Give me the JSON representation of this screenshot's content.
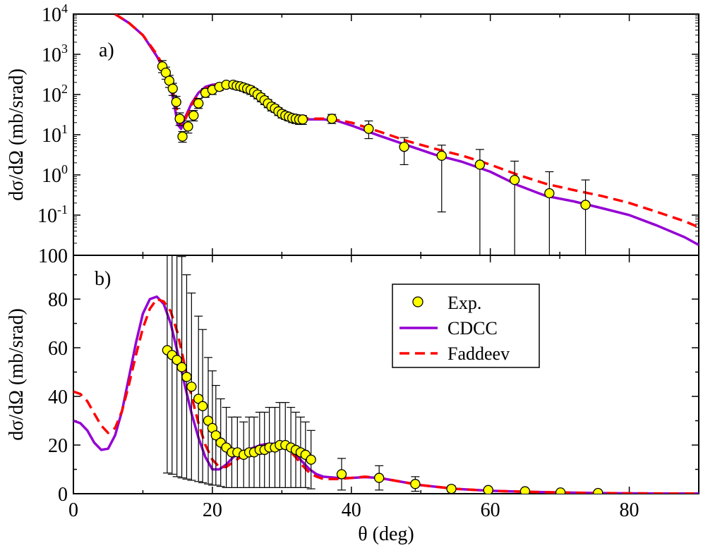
{
  "chart_data": [
    {
      "type": "line",
      "panel_label": "a)",
      "xlabel": "",
      "ylabel": "dσ/dΩ (mb/srad)",
      "xlim": [
        0,
        90
      ],
      "ylim": [
        0.01,
        10000
      ],
      "yscale": "log",
      "x_ticks": [
        0,
        20,
        40,
        60,
        80
      ],
      "y_ticks": [
        {
          "value": 10000,
          "base": "10",
          "exp": "4"
        },
        {
          "value": 1000,
          "base": "10",
          "exp": "3"
        },
        {
          "value": 100,
          "base": "10",
          "exp": "2"
        },
        {
          "value": 10,
          "base": "10",
          "exp": "1"
        },
        {
          "value": 1,
          "base": "10",
          "exp": "0"
        },
        {
          "value": 0.1,
          "base": "10",
          "exp": "-1"
        },
        {
          "value": 0.01,
          "base": "100",
          "exp": ""
        }
      ],
      "series": [
        {
          "name": "CDCC",
          "style": "solid",
          "color": "#9400d3",
          "x": [
            6,
            8,
            10,
            12,
            13,
            14,
            14.5,
            15,
            15.5,
            16,
            17,
            18,
            19,
            20,
            21,
            22,
            24,
            26,
            28,
            30,
            32,
            34,
            36,
            38,
            40,
            44,
            48,
            52,
            56,
            60,
            64,
            68,
            72,
            76,
            80,
            84,
            88,
            90
          ],
          "y": [
            10000,
            6000,
            3000,
            900,
            420,
            150,
            60,
            18,
            14,
            25,
            60,
            110,
            155,
            175,
            180,
            175,
            140,
            95,
            55,
            30,
            23,
            24,
            24,
            22,
            17,
            9.5,
            5.5,
            3.2,
            2.1,
            1.2,
            0.55,
            0.3,
            0.22,
            0.15,
            0.1,
            0.055,
            0.028,
            0.018
          ]
        },
        {
          "name": "Faddeev",
          "style": "dashed",
          "color": "#ff0000",
          "x": [
            6,
            8,
            10,
            12,
            13,
            14,
            14.5,
            15,
            15.5,
            16,
            17,
            18,
            19,
            20,
            21,
            22,
            24,
            26,
            28,
            30,
            32,
            34,
            36,
            38,
            40,
            44,
            48,
            52,
            56,
            60,
            64,
            68,
            72,
            76,
            80,
            84,
            88,
            90
          ],
          "y": [
            10000,
            6000,
            3000,
            1000,
            480,
            200,
            90,
            35,
            18,
            22,
            55,
            100,
            140,
            165,
            175,
            170,
            150,
            110,
            70,
            38,
            27,
            25,
            25,
            23,
            20,
            12,
            7,
            4.5,
            3,
            1.8,
            1.0,
            0.6,
            0.42,
            0.3,
            0.2,
            0.12,
            0.07,
            0.05
          ]
        }
      ],
      "points": {
        "name": "Exp.",
        "color": "#ffff00",
        "x": [
          12.8,
          13.3,
          13.8,
          14.3,
          14.8,
          15.3,
          15.7,
          16.5,
          17.3,
          18.0,
          19.0,
          20.0,
          21.0,
          22.0,
          23.0,
          23.5,
          24.0,
          24.5,
          25.0,
          25.5,
          26.0,
          26.5,
          27.0,
          27.5,
          28.0,
          28.5,
          29.0,
          29.5,
          30.0,
          30.5,
          31.0,
          31.5,
          32.0,
          32.5,
          33.0,
          37.2,
          42.5,
          47.6,
          53.0,
          58.5,
          63.5,
          68.5,
          73.7
        ],
        "y": [
          500,
          350,
          220,
          140,
          65,
          25,
          9,
          16,
          30,
          60,
          110,
          130,
          155,
          175,
          175,
          165,
          160,
          150,
          140,
          130,
          115,
          100,
          85,
          72,
          60,
          50,
          45,
          38,
          33,
          30,
          28,
          26,
          25,
          24,
          24,
          25,
          14,
          5,
          3,
          1.8,
          0.75,
          0.35,
          0.18
        ],
        "err_hi": [
          700,
          480,
          300,
          190,
          90,
          35,
          12,
          22,
          40,
          80,
          140,
          160,
          185,
          205,
          205,
          195,
          190,
          180,
          170,
          160,
          140,
          125,
          105,
          90,
          75,
          63,
          55,
          47,
          41,
          37,
          34,
          32,
          31,
          30,
          30,
          32,
          22,
          8.5,
          5.5,
          4.3,
          2.2,
          1.2,
          0.75
        ],
        "err_lo": [
          350,
          240,
          150,
          95,
          45,
          17,
          6.5,
          11,
          22,
          45,
          85,
          100,
          125,
          145,
          145,
          135,
          130,
          120,
          110,
          100,
          90,
          78,
          66,
          56,
          47,
          39,
          36,
          30,
          26,
          24,
          22,
          20,
          19,
          18,
          18,
          19,
          8,
          1.8,
          0.12,
          0.01,
          0.01,
          0.01,
          0.01
        ]
      }
    },
    {
      "type": "line",
      "panel_label": "b)",
      "xlabel": "θ (deg)",
      "ylabel": "dσ/dΩ (mb/srad)",
      "xlim": [
        0,
        90
      ],
      "ylim": [
        0,
        98
      ],
      "x_ticks": [
        0,
        20,
        40,
        60,
        80
      ],
      "y_ticks": [
        0,
        20,
        40,
        60,
        80
      ],
      "legend": {
        "position": "upper-right",
        "entries": [
          "Exp.",
          "CDCC",
          "Faddeev"
        ]
      },
      "series": [
        {
          "name": "CDCC",
          "style": "solid",
          "color": "#9400d3",
          "x": [
            0,
            1,
            2,
            3,
            4,
            5,
            6,
            7,
            8,
            9,
            10,
            11,
            12,
            13,
            14,
            15,
            16,
            17,
            18,
            19,
            20,
            21,
            22,
            23,
            24,
            25,
            26,
            27,
            28,
            29,
            30,
            31,
            32,
            33,
            34,
            35,
            36,
            38,
            40,
            42,
            44,
            46,
            48,
            50,
            55,
            60,
            65,
            70,
            75,
            80,
            85,
            90
          ],
          "y": [
            30,
            29,
            26,
            21,
            18,
            18.5,
            24,
            34,
            48,
            62,
            74,
            80,
            81,
            78,
            70,
            58,
            45,
            33,
            23,
            15,
            10,
            10,
            12,
            15,
            17,
            18,
            19,
            20,
            20.5,
            20.5,
            20,
            18.5,
            16,
            13,
            10,
            8,
            7,
            6.5,
            6.5,
            6.8,
            6.5,
            5.5,
            4.5,
            3.5,
            2,
            1.2,
            0.8,
            0.5,
            0.3,
            0.15,
            0.1,
            0.1
          ]
        },
        {
          "name": "Faddeev",
          "style": "dashed",
          "color": "#ff0000",
          "x": [
            0,
            1,
            2,
            3,
            4,
            5,
            6,
            7,
            8,
            9,
            10,
            11,
            12,
            13,
            14,
            15,
            16,
            17,
            18,
            19,
            20,
            21,
            22,
            23,
            24,
            25,
            26,
            27,
            28,
            29,
            30,
            31,
            32,
            33,
            34,
            35,
            36,
            38,
            40,
            42,
            44,
            46,
            48,
            50,
            55,
            60,
            65,
            70,
            75,
            80,
            85,
            90
          ],
          "y": [
            42,
            41,
            38,
            33,
            28,
            25,
            27,
            34,
            45,
            57,
            68,
            76,
            80,
            79,
            75,
            66,
            53,
            40,
            29,
            20,
            14,
            11,
            11,
            13,
            15,
            17,
            18.5,
            19.5,
            20,
            20,
            19.5,
            18,
            15,
            11.5,
            8.5,
            7,
            6,
            6,
            6.5,
            7,
            6.5,
            5.5,
            4.5,
            3.5,
            2,
            1.2,
            0.8,
            0.5,
            0.3,
            0.15,
            0.1,
            0.1
          ]
        }
      ],
      "points": {
        "name": "Exp.",
        "color": "#ffff00",
        "x": [
          13.5,
          14.2,
          14.9,
          15.6,
          16.3,
          17.0,
          18.0,
          18.6,
          19.4,
          20.0,
          20.5,
          21.2,
          22.0,
          22.8,
          23.6,
          24.5,
          25.3,
          26.0,
          26.8,
          27.5,
          28.2,
          29.0,
          29.7,
          30.5,
          31.3,
          32.0,
          32.7,
          33.4,
          34.2,
          38.6,
          44.0,
          49.2,
          54.4,
          59.7,
          65.0,
          70.1,
          75.5
        ],
        "y": [
          59,
          57,
          55,
          52,
          48,
          44,
          39,
          36,
          30,
          27,
          24,
          21,
          19,
          17,
          17,
          16,
          17,
          17,
          18,
          18,
          19,
          19,
          20,
          20,
          19,
          18,
          17,
          16,
          14,
          8,
          6.5,
          4,
          2,
          1.5,
          1,
          0.5,
          0.3
        ],
        "err_hi": [
          8.5,
          8,
          7,
          6.5,
          6,
          5.5,
          5,
          4.5,
          4,
          3.5,
          3.5,
          3,
          2.5,
          2.5,
          2.5,
          2.5,
          2.5,
          2.5,
          2.5,
          2.5,
          2.5,
          2.5,
          2.5,
          2.5,
          2.5,
          2.5,
          2.5,
          2.5,
          2,
          1.5,
          1.5,
          1,
          0.8,
          0.8,
          0.6,
          0.5,
          0.5
        ]
      }
    }
  ]
}
